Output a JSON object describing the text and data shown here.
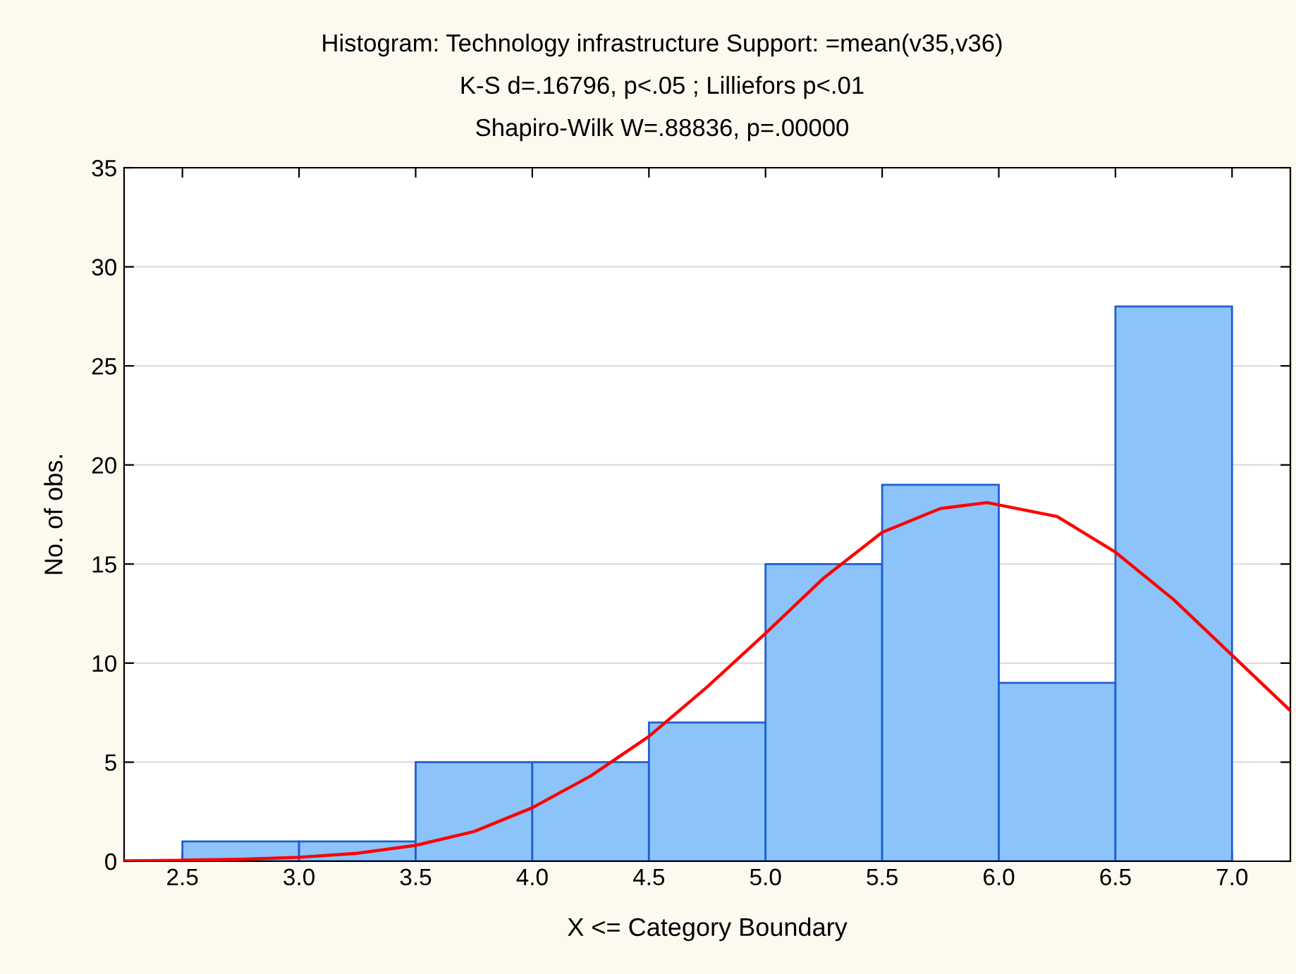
{
  "chart_data": {
    "type": "histogram",
    "title": "Histogram: Technology infrastructure Support: =mean(v35,v36)",
    "subtitle": "K-S d=.16796, p<.05 ; Lilliefors p<.01",
    "annotations": [
      "Shapiro-Wilk W=.88836, p=.00000"
    ],
    "xlabel": "X <= Category Boundary",
    "ylabel": "No. of obs.",
    "bins": [
      2.5,
      3.0,
      3.5,
      4.0,
      4.5,
      5.0,
      5.5,
      6.0,
      6.5,
      7.0
    ],
    "values": [
      1,
      1,
      5,
      5,
      7,
      15,
      19,
      9,
      28
    ],
    "color": "#8cc3fa",
    "series": [
      {
        "type": "line",
        "color": "#ff0000",
        "x": [
          2.25,
          2.5,
          2.75,
          3.0,
          3.25,
          3.5,
          3.75,
          4.0,
          4.25,
          4.5,
          4.75,
          5.0,
          5.25,
          5.5,
          5.75,
          5.95,
          6.25,
          6.5,
          6.75,
          7.0,
          7.25
        ],
        "values": [
          0.02,
          0.05,
          0.1,
          0.2,
          0.4,
          0.8,
          1.5,
          2.7,
          4.3,
          6.3,
          8.8,
          11.5,
          14.3,
          16.6,
          17.8,
          18.1,
          17.4,
          15.6,
          13.2,
          10.4,
          7.6
        ]
      }
    ],
    "xlim": [
      2.25,
      7.25
    ],
    "ylim": [
      0,
      35
    ],
    "xticks": [
      {
        "value": 2.5,
        "label": "2.5"
      },
      {
        "value": 3.0,
        "label": "3.0"
      },
      {
        "value": 3.5,
        "label": "3.5"
      },
      {
        "value": 4.0,
        "label": "4.0"
      },
      {
        "value": 4.5,
        "label": "4.5"
      },
      {
        "value": 5.0,
        "label": "5.0"
      },
      {
        "value": 5.5,
        "label": "5.5"
      },
      {
        "value": 6.0,
        "label": "6.0"
      },
      {
        "value": 6.5,
        "label": "6.5"
      },
      {
        "value": 7.0,
        "label": "7.0"
      }
    ],
    "yticks": [
      0,
      5,
      10,
      15,
      20,
      25,
      30,
      35
    ],
    "grid": "y",
    "legend": false
  }
}
